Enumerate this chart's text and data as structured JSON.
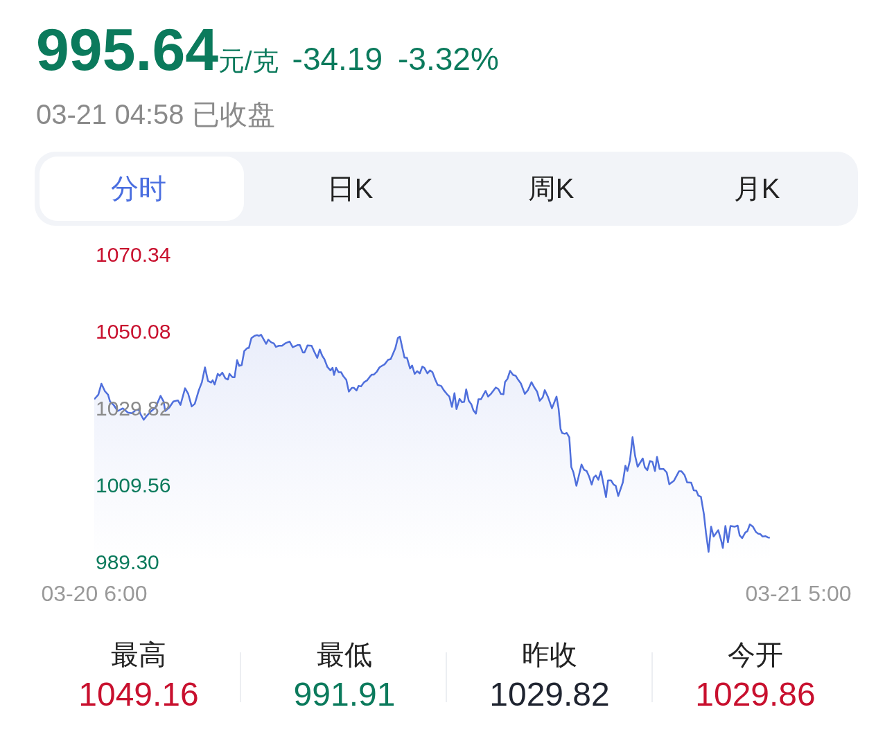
{
  "chart_data": {
    "type": "area",
    "title": "995.64",
    "subtitle": "03-21 04:58 已收盘",
    "annotations": [
      "元/克",
      "-34.19",
      "-3.32%",
      "分时",
      "日K",
      "周K",
      "月K",
      "最高",
      "1049.16",
      "最低",
      "991.91",
      "昨收",
      "1029.82",
      "今开",
      "1029.86"
    ],
    "xlim": [
      "--03-20T06:00",
      "--03-21T05:00"
    ],
    "xticks": [
      {
        "value": "--03-20T06:00",
        "label": "03-20 6:00"
      },
      {
        "value": "--03-21T05:00",
        "label": "03-21 5:00"
      }
    ],
    "ylim": [
      989.3,
      1070.34
    ],
    "yticks": [
      {
        "value": 989.3,
        "label": "989.30"
      },
      1009.56,
      1029.82,
      1050.08,
      1070.34
    ],
    "x": [
      "--03-20T06:00",
      "--03-20T06:08",
      "--03-20T06:14",
      "--03-20T06:21",
      "--03-20T06:27",
      "--03-20T06:31",
      "--03-20T06:38",
      "--03-20T06:46",
      "--03-20T06:56",
      "--03-20T07:06",
      "--03-20T07:14",
      "--03-20T07:21",
      "--03-20T07:27",
      "--03-20T07:31",
      "--03-20T07:37",
      "--03-20T07:44",
      "--03-20T07:52",
      "--03-20T08:00",
      "--03-20T08:10",
      "--03-20T08:16",
      "--03-20T08:19",
      "--03-20T08:27",
      "--03-20T08:35",
      "--03-20T08:44",
      "--03-20T08:49",
      "--03-20T08:58",
      "--03-20T09:04",
      "--03-20T09:11",
      "--03-20T09:17",
      "--03-20T09:25",
      "--03-20T09:31",
      "--03-20T09:37",
      "--03-20T09:43",
      "--03-20T09:49",
      "--03-20T09:52",
      "--03-20T09:56",
      "--03-20T10:02",
      "--03-20T10:06",
      "--03-20T10:11",
      "--03-20T10:17",
      "--03-20T10:22",
      "--03-20T10:25",
      "--03-20T10:31",
      "--03-20T10:35",
      "--03-20T10:40",
      "--03-20T10:44",
      "--03-20T10:49",
      "--03-20T10:54",
      "--03-20T11:00",
      "--03-20T11:03",
      "--03-20T11:08",
      "--03-20T11:14",
      "--03-20T11:19",
      "--03-20T11:23",
      "--03-20T11:27",
      "--03-20T11:37",
      "--03-20T11:41",
      "--03-20T11:47",
      "--03-20T11:52",
      "--03-20T11:56",
      "--03-20T12:02",
      "--03-20T12:08",
      "--03-20T12:14",
      "--03-20T12:17",
      "--03-20T12:23",
      "--03-20T12:29",
      "--03-20T12:39",
      "--03-20T12:43",
      "--03-20T12:49",
      "--03-20T12:52",
      "--03-20T12:58",
      "--03-20T13:06",
      "--03-20T13:11",
      "--03-20T13:17",
      "--03-20T13:22",
      "--03-20T13:27",
      "--03-20T13:31",
      "--03-20T13:37",
      "--03-20T13:43",
      "--03-20T13:47",
      "--03-20T13:50",
      "--03-20T13:54",
      "--03-20T13:59",
      "--03-20T14:04",
      "--03-20T14:08",
      "--03-20T14:14",
      "--03-20T14:19",
      "--03-20T14:25",
      "--03-20T14:29",
      "--03-20T14:34",
      "--03-20T14:38",
      "--03-20T14:43",
      "--03-20T14:49",
      "--03-20T14:55",
      "--03-20T15:00",
      "--03-20T15:04",
      "--03-20T15:08",
      "--03-20T15:14",
      "--03-20T15:19",
      "--03-20T15:25",
      "--03-20T15:29",
      "--03-20T15:36",
      "--03-20T15:41",
      "--03-20T15:44",
      "--03-20T15:50",
      "--03-20T15:55",
      "--03-20T15:59",
      "--03-20T16:04",
      "--03-20T16:08",
      "--03-20T16:13",
      "--03-20T16:19",
      "--03-20T16:23",
      "--03-20T16:28",
      "--03-20T16:33",
      "--03-20T16:38",
      "--03-20T16:43",
      "--03-20T16:47",
      "--03-20T16:53",
      "--03-20T16:58",
      "--03-20T17:03",
      "--03-20T17:08",
      "--03-20T17:13",
      "--03-20T17:20",
      "--03-20T17:25",
      "--03-20T17:31",
      "--03-20T17:36",
      "--03-20T17:41",
      "--03-20T17:46",
      "--03-20T17:50",
      "--03-20T17:56",
      "--03-20T18:01",
      "--03-20T18:05",
      "--03-20T18:09",
      "--03-20T18:14",
      "--03-20T18:19",
      "--03-20T18:23",
      "--03-20T18:28",
      "--03-20T18:33",
      "--03-20T18:38",
      "--03-20T18:47",
      "--03-20T18:52",
      "--03-20T18:58",
      "--03-20T19:07",
      "--03-20T19:12",
      "--03-20T19:17",
      "--03-20T19:22",
      "--03-20T19:25",
      "--03-20T19:30",
      "--03-20T19:35",
      "--03-20T19:41",
      "--03-20T19:46",
      "--03-20T19:50",
      "--03-20T19:56",
      "--03-20T20:04",
      "--03-20T20:10",
      "--03-20T20:17",
      "--03-20T20:23",
      "--03-20T20:28",
      "--03-20T20:33",
      "--03-20T20:39",
      "--03-20T20:43",
      "--03-20T20:49",
      "--03-20T20:57",
      "--03-20T21:06",
      "--03-20T21:10",
      "--03-20T21:14",
      "--03-20T21:17",
      "--03-20T21:22",
      "--03-20T21:26",
      "--03-20T21:31",
      "--03-20T21:35",
      "--03-20T21:39",
      "--03-20T21:45",
      "--03-20T21:55",
      "--03-20T22:00",
      "--03-20T22:05",
      "--03-20T22:10",
      "--03-20T22:15",
      "--03-20T22:19",
      "--03-20T22:23",
      "--03-20T22:28",
      "--03-20T22:33",
      "--03-20T22:43",
      "--03-20T22:47",
      "--03-20T22:53",
      "--03-20T22:58",
      "--03-20T23:02",
      "--03-20T23:07",
      "--03-20T23:16",
      "--03-20T23:21",
      "--03-20T23:25",
      "--03-20T23:30",
      "--03-20T23:35",
      "--03-20T23:40",
      "--03-20T23:45",
      "--03-20T23:55",
      "--03-20T23:59",
      "--03-21T00:04",
      "--03-21T00:09",
      "--03-21T00:14",
      "--03-21T00:19",
      "--03-21T00:23",
      "--03-21T00:28",
      "--03-21T00:36",
      "--03-21T00:42",
      "--03-21T00:47",
      "--03-21T00:56",
      "--03-21T01:06",
      "--03-21T01:11",
      "--03-21T01:17",
      "--03-21T01:22",
      "--03-21T01:30",
      "--03-21T01:35",
      "--03-21T01:40",
      "--03-21T01:44",
      "--03-21T01:49",
      "--03-21T01:55",
      "--03-21T01:59",
      "--03-21T02:04",
      "--03-21T02:09",
      "--03-21T02:14",
      "--03-21T02:23",
      "--03-21T02:29",
      "--03-21T02:32",
      "--03-21T02:37",
      "--03-21T02:42",
      "--03-21T02:47",
      "--03-21T02:55",
      "--03-21T03:01",
      "--03-21T03:05",
      "--03-21T03:10",
      "--03-21T03:16",
      "--03-21T03:20",
      "--03-21T03:25",
      "--03-21T03:31",
      "--03-21T03:37",
      "--03-21T03:41",
      "--03-21T03:46",
      "--03-21T03:50",
      "--03-21T03:56",
      "--03-21T04:00",
      "--03-21T04:04"
    ],
    "series": [
      {
        "color": "#4f6fdc",
        "values": [
          1032.1,
          1033.3,
          1036.2,
          1034.2,
          1033.3,
          1031.5,
          1030.6,
          1029.0,
          1029.7,
          1028.6,
          1028.4,
          1029.2,
          1029.4,
          1028.1,
          1026.7,
          1027.9,
          1029.0,
          1029.9,
          1033.0,
          1031.5,
          1029.0,
          1029.9,
          1031.5,
          1031.8,
          1030.6,
          1035.0,
          1033.6,
          1030.2,
          1030.9,
          1034.5,
          1036.6,
          1040.5,
          1036.9,
          1036.5,
          1037.1,
          1036.0,
          1038.8,
          1038.3,
          1039.1,
          1037.6,
          1037.3,
          1038.8,
          1037.9,
          1037.9,
          1042.4,
          1040.9,
          1041.1,
          1044.8,
          1045.6,
          1045.6,
          1048.2,
          1048.8,
          1049.0,
          1048.8,
          1049.1,
          1046.7,
          1047.8,
          1047.1,
          1046.8,
          1045.9,
          1046.2,
          1046.2,
          1046.8,
          1047.0,
          1047.3,
          1045.8,
          1046.4,
          1046.4,
          1044.4,
          1044.4,
          1046.3,
          1046.2,
          1044.7,
          1043.0,
          1045.2,
          1043.5,
          1042.7,
          1040.6,
          1039.7,
          1040.4,
          1038.5,
          1040.4,
          1039.2,
          1039.2,
          1038.2,
          1037.2,
          1034.1,
          1035.1,
          1035.1,
          1034.4,
          1035.6,
          1035.5,
          1036.6,
          1037.1,
          1038.0,
          1038.6,
          1038.6,
          1039.4,
          1040.5,
          1041.0,
          1041.3,
          1042.5,
          1042.7,
          1043.6,
          1045.5,
          1048.2,
          1048.6,
          1045.5,
          1043.1,
          1043.0,
          1040.2,
          1041.0,
          1038.8,
          1039.5,
          1038.9,
          1040.7,
          1040.4,
          1038.9,
          1039.7,
          1039.2,
          1037.4,
          1035.9,
          1035.6,
          1034.5,
          1033.5,
          1032.8,
          1030.1,
          1033.7,
          1029.5,
          1032.2,
          1031.3,
          1031.4,
          1034.7,
          1031.7,
          1030.8,
          1029.2,
          1028.3,
          1032.1,
          1032.1,
          1034.3,
          1032.8,
          1033.6,
          1035.2,
          1034.8,
          1033.5,
          1033.4,
          1036.6,
          1037.5,
          1039.6,
          1038.5,
          1038.3,
          1037.4,
          1036.3,
          1033.5,
          1034.5,
          1036.6,
          1035.1,
          1034.1,
          1031.7,
          1032.6,
          1034.5,
          1032.8,
          1029.7,
          1032.8,
          1029.7,
          1024.2,
          1023.2,
          1023.0,
          1023.2,
          1022.1,
          1014.2,
          1012.9,
          1009.3,
          1014.9,
          1013.5,
          1013.2,
          1011.7,
          1009.6,
          1011.5,
          1012.0,
          1010.9,
          1013.1,
          1006.3,
          1010.7,
          1010.7,
          1009.6,
          1009.3,
          1006.6,
          1010.2,
          1014.6,
          1013.2,
          1016.0,
          1022.1,
          1017.2,
          1014.3,
          1016.5,
          1014.2,
          1013.4,
          1015.8,
          1015.6,
          1013.2,
          1016.9,
          1013.7,
          1013.7,
          1012.8,
          1009.7,
          1010.6,
          1013.1,
          1013.1,
          1012.1,
          1010.2,
          1010.1,
          1008.1,
          1008.0,
          1006.7,
          1006.4,
          1001.7,
          996.8,
          991.9,
          998.5,
          995.9,
          997.6,
          994.7,
          992.9,
          998.7,
          994.4,
          998.7,
          998.5,
          998.8,
          996.2,
          995.5,
          997.0,
          997.3,
          999.1,
          998.5,
          997.1,
          996.7,
          996.5,
          995.9,
          996.0,
          995.7,
          995.6
        ]
      }
    ]
  }
}
